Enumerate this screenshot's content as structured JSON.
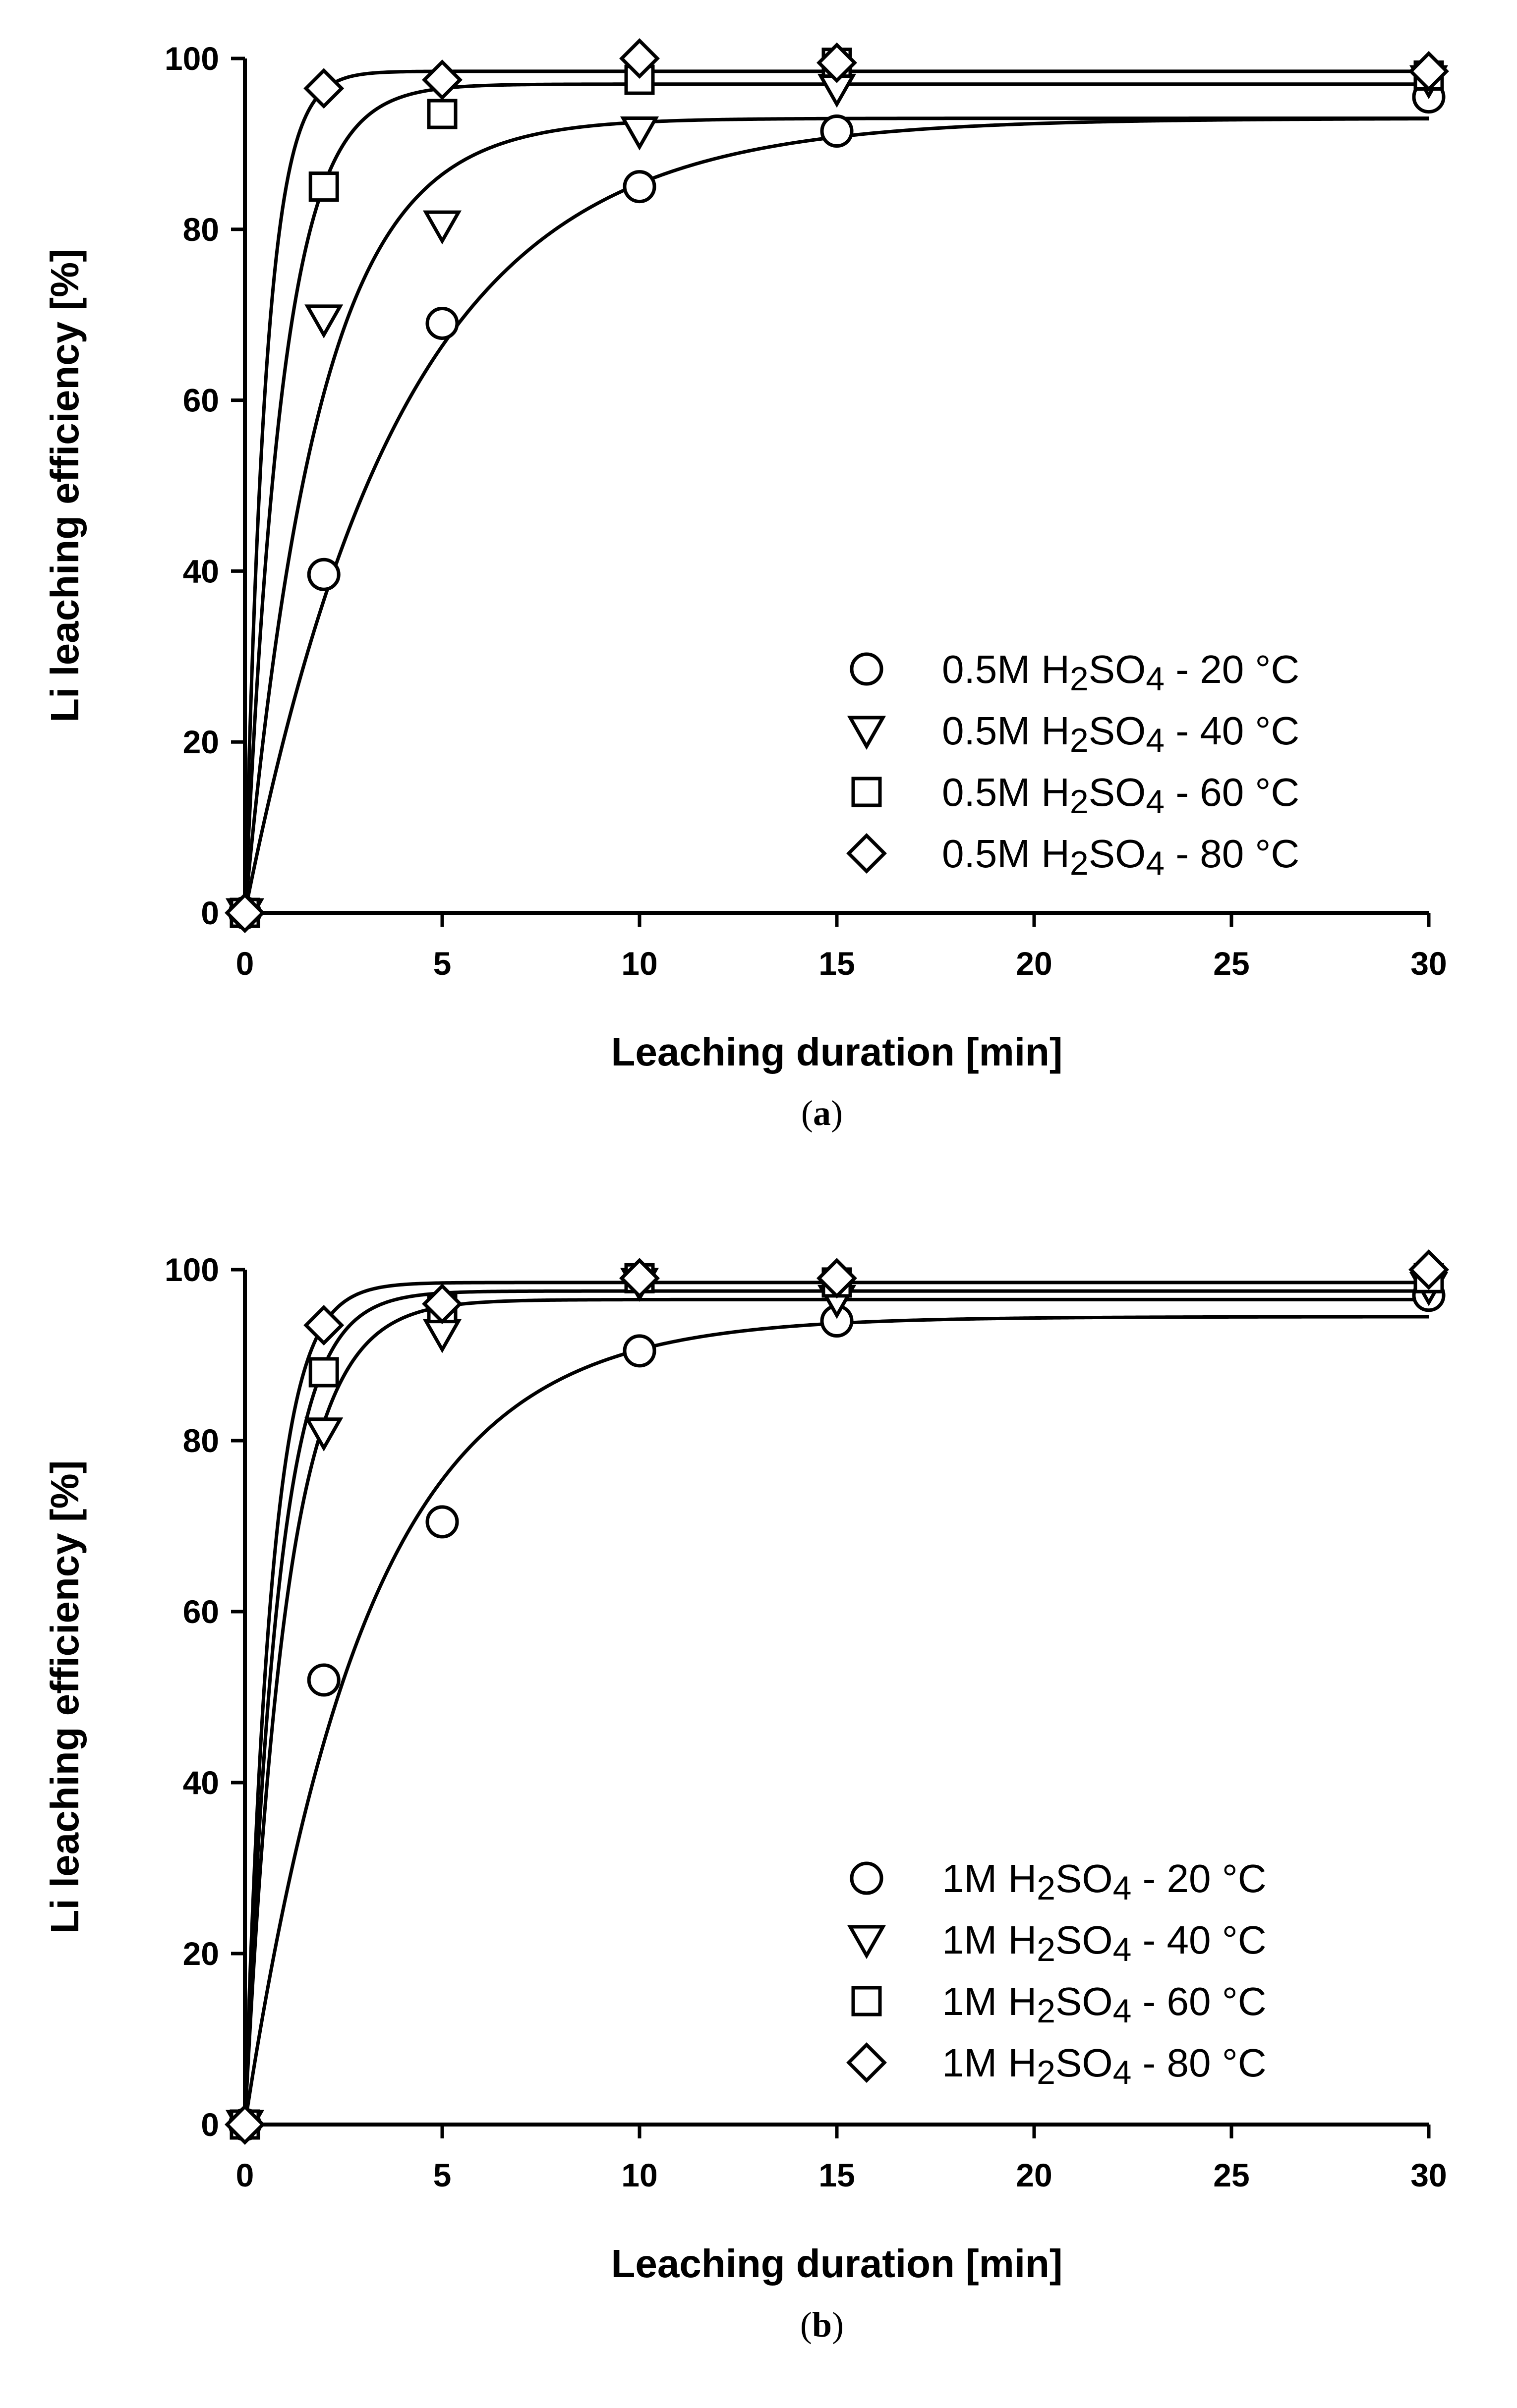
{
  "chart_data": [
    {
      "type": "scatter",
      "panel_label": "a",
      "xlabel": "Leaching duration [min]",
      "ylabel": "Li leaching efficiency [%]",
      "x_tick_labels": [
        "0",
        "5",
        "10",
        "15",
        "20",
        "25",
        "30"
      ],
      "y_tick_labels": [
        "0",
        "20",
        "40",
        "60",
        "80",
        "100"
      ],
      "xlim": [
        0,
        30
      ],
      "ylim": [
        0,
        100
      ],
      "grid": false,
      "legend_position": "lower-right",
      "markers_have_fitted_curves": true,
      "series": [
        {
          "name_parts": [
            "0.5M H",
            "2",
            "SO",
            "4",
            " - 20 °C"
          ],
          "marker": "circle",
          "x": [
            0,
            2,
            5,
            10,
            15,
            30
          ],
          "y": [
            0,
            39.6,
            69,
            85,
            91.5,
            95.5
          ],
          "fit": {
            "model": "y = A(1 - e^(-kx))",
            "A": 93,
            "k": 0.25
          }
        },
        {
          "name_parts": [
            "0.5M H",
            "2",
            "SO",
            "4",
            " - 40 °C"
          ],
          "marker": "triangle-down",
          "x": [
            0,
            2,
            5,
            10,
            15,
            30
          ],
          "y": [
            0,
            69.5,
            80.5,
            91.5,
            96.5,
            97.5
          ],
          "fit": {
            "model": "y = A(1 - e^(-kx))",
            "A": 93,
            "k": 0.53
          }
        },
        {
          "name_parts": [
            "0.5M H",
            "2",
            "SO",
            "4",
            " - 60 °C"
          ],
          "marker": "square",
          "x": [
            0,
            2,
            5,
            10,
            15,
            30
          ],
          "y": [
            0,
            85,
            93.5,
            97.5,
            99.5,
            98
          ],
          "fit": {
            "model": "y = A(1 - e^(-kx))",
            "A": 97,
            "k": 1.05
          }
        },
        {
          "name_parts": [
            "0.5M H",
            "2",
            "SO",
            "4",
            " - 80 °C"
          ],
          "marker": "diamond",
          "x": [
            0,
            2,
            5,
            10,
            15,
            30
          ],
          "y": [
            0,
            96.5,
            97.5,
            100,
            99.5,
            98.5
          ],
          "fit": {
            "model": "y = A(1 - e^(-kx))",
            "A": 98.5,
            "k": 1.9
          }
        }
      ]
    },
    {
      "type": "scatter",
      "panel_label": "b",
      "xlabel": "Leaching duration [min]",
      "ylabel": "Li leaching efficiency [%]",
      "x_tick_labels": [
        "0",
        "5",
        "10",
        "15",
        "20",
        "25",
        "30"
      ],
      "y_tick_labels": [
        "0",
        "20",
        "40",
        "60",
        "80",
        "100"
      ],
      "xlim": [
        0,
        30
      ],
      "ylim": [
        0,
        100
      ],
      "grid": false,
      "legend_position": "lower-right",
      "markers_have_fitted_curves": true,
      "series": [
        {
          "name_parts": [
            "1M H",
            "2",
            "SO",
            "4",
            " - 20 °C"
          ],
          "marker": "circle",
          "x": [
            0,
            2,
            5,
            10,
            15,
            30
          ],
          "y": [
            0,
            52,
            70.5,
            90.5,
            94,
            97
          ],
          "fit": {
            "model": "y = A(1 - e^(-kx))",
            "A": 94.5,
            "k": 0.32
          }
        },
        {
          "name_parts": [
            "1M H",
            "2",
            "SO",
            "4",
            " - 40 °C"
          ],
          "marker": "triangle-down",
          "x": [
            0,
            2,
            5,
            10,
            15,
            30
          ],
          "y": [
            0,
            81,
            92.5,
            98.5,
            96.5,
            98
          ],
          "fit": {
            "model": "y = A(1 - e^(-kx))",
            "A": 96.5,
            "k": 0.95
          }
        },
        {
          "name_parts": [
            "1M H",
            "2",
            "SO",
            "4",
            " - 60 °C"
          ],
          "marker": "square",
          "x": [
            0,
            2,
            5,
            10,
            15,
            30
          ],
          "y": [
            0,
            88,
            95.5,
            99,
            98.5,
            99
          ],
          "fit": {
            "model": "y = A(1 - e^(-kx))",
            "A": 97.5,
            "k": 1.2
          }
        },
        {
          "name_parts": [
            "1M H",
            "2",
            "SO",
            "4",
            " - 80 °C"
          ],
          "marker": "diamond",
          "x": [
            0,
            2,
            5,
            10,
            15,
            30
          ],
          "y": [
            0,
            93.5,
            96,
            99,
            99,
            100
          ],
          "fit": {
            "model": "y = A(1 - e^(-kx))",
            "A": 98.5,
            "k": 1.5
          }
        }
      ]
    }
  ]
}
